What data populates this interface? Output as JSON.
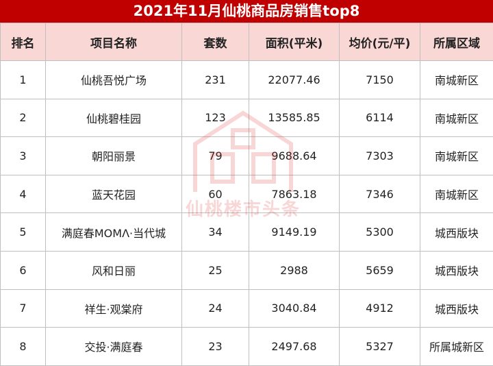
{
  "title": "2021年11月仙桃商品房销售top8",
  "table": {
    "header": [
      "排名",
      "项目名称",
      "套数",
      "面积(平米)",
      "均价(元/平)",
      "所属区域"
    ],
    "rows": [
      [
        "1",
        "仙桃吾悦广场",
        "231",
        "22077.46",
        "7150",
        "南城新区"
      ],
      [
        "2",
        "仙桃碧桂园",
        "123",
        "13585.85",
        "6114",
        "南城新区"
      ],
      [
        "3",
        "朝阳丽景",
        "79",
        "9688.64",
        "7303",
        "南城新区"
      ],
      [
        "4",
        "蓝天花园",
        "60",
        "7863.18",
        "7346",
        "南城新区"
      ],
      [
        "5",
        "满庭春MOMΛ·当代城",
        "34",
        "9149.19",
        "5300",
        "城西版块"
      ],
      [
        "6",
        "风和日丽",
        "25",
        "2988",
        "5659",
        "城西版块"
      ],
      [
        "7",
        "祥生·观棠府",
        "24",
        "3040.84",
        "4912",
        "城西版块"
      ],
      [
        "8",
        "交投·满庭春",
        "23",
        "2497.68",
        "5327",
        "所属城新区"
      ]
    ]
  },
  "watermark": "仙桃楼市头条"
}
